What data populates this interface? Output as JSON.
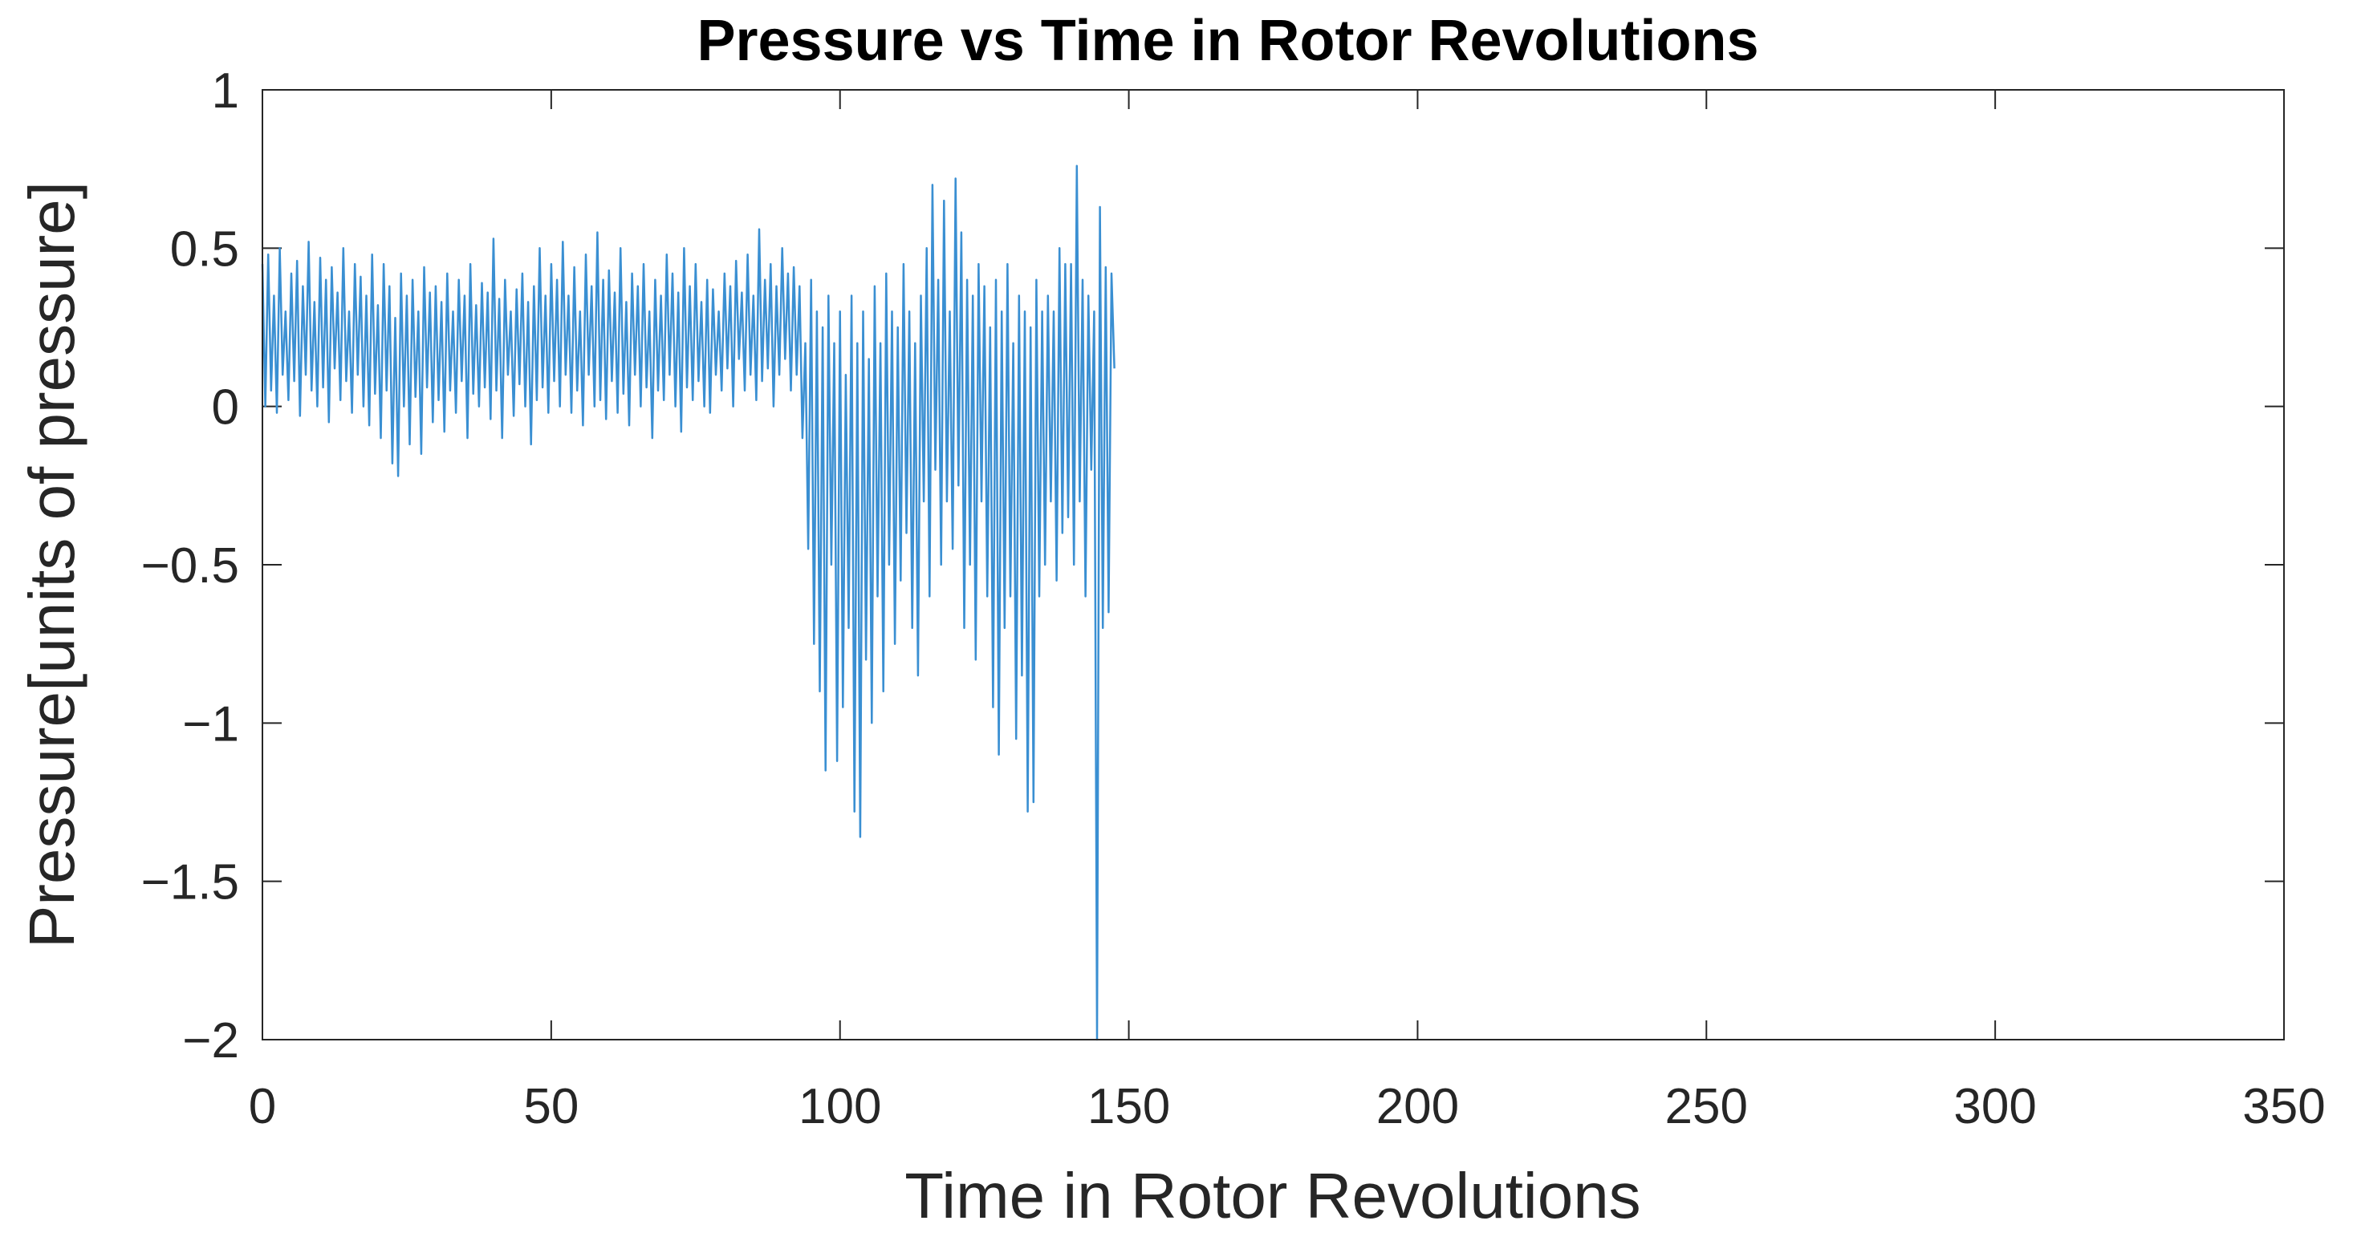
{
  "chart_data": {
    "type": "line",
    "title": "Pressure vs Time in Rotor Revolutions",
    "xlabel": "Time in Rotor Revolutions",
    "ylabel": "Pressure[units of pressure]",
    "xlim": [
      0,
      350
    ],
    "ylim": [
      -2,
      1
    ],
    "xticks": [
      0,
      50,
      100,
      150,
      200,
      250,
      300,
      350
    ],
    "xtick_labels": [
      "0",
      "50",
      "100",
      "150",
      "200",
      "250",
      "300",
      "350"
    ],
    "yticks": [
      1,
      0.5,
      0,
      -0.5,
      -1,
      -1.5,
      -2
    ],
    "ytick_labels": [
      "1",
      "0.5",
      "0",
      "−0.5",
      "−1",
      "−1.5",
      "−2"
    ],
    "grid": false,
    "line_color": "#3a8fd2",
    "series": [
      {
        "name": "Pressure",
        "x_start": 0,
        "x_step": 0.5,
        "values": [
          0.45,
          0.0,
          0.48,
          0.05,
          0.35,
          -0.02,
          0.5,
          0.1,
          0.3,
          0.02,
          0.42,
          0.08,
          0.46,
          -0.03,
          0.38,
          0.1,
          0.52,
          0.05,
          0.33,
          0.0,
          0.47,
          0.06,
          0.4,
          -0.05,
          0.44,
          0.12,
          0.36,
          0.02,
          0.5,
          0.08,
          0.3,
          -0.02,
          0.45,
          0.1,
          0.41,
          0.0,
          0.35,
          -0.06,
          0.48,
          0.04,
          0.32,
          -0.1,
          0.45,
          0.05,
          0.38,
          -0.18,
          0.28,
          -0.22,
          0.42,
          0.0,
          0.35,
          -0.12,
          0.4,
          0.03,
          0.3,
          -0.15,
          0.44,
          0.06,
          0.36,
          -0.05,
          0.38,
          0.02,
          0.33,
          -0.08,
          0.42,
          0.05,
          0.3,
          -0.02,
          0.4,
          0.08,
          0.35,
          -0.1,
          0.45,
          0.04,
          0.32,
          0.0,
          0.39,
          0.06,
          0.36,
          -0.04,
          0.53,
          0.05,
          0.34,
          -0.1,
          0.4,
          0.1,
          0.3,
          -0.03,
          0.37,
          0.07,
          0.42,
          0.0,
          0.33,
          -0.12,
          0.38,
          0.02,
          0.5,
          0.06,
          0.35,
          -0.02,
          0.45,
          0.08,
          0.4,
          0.0,
          0.52,
          0.1,
          0.35,
          -0.02,
          0.44,
          0.05,
          0.3,
          -0.06,
          0.48,
          0.1,
          0.38,
          0.0,
          0.55,
          0.02,
          0.4,
          -0.04,
          0.43,
          0.08,
          0.36,
          -0.02,
          0.5,
          0.04,
          0.33,
          -0.06,
          0.42,
          0.1,
          0.38,
          0.0,
          0.45,
          0.06,
          0.3,
          -0.1,
          0.4,
          0.05,
          0.35,
          0.02,
          0.48,
          0.1,
          0.42,
          0.0,
          0.36,
          -0.08,
          0.5,
          0.06,
          0.38,
          0.02,
          0.45,
          0.08,
          0.33,
          0.0,
          0.4,
          -0.02,
          0.37,
          0.1,
          0.3,
          0.05,
          0.42,
          0.12,
          0.38,
          0.0,
          0.46,
          0.15,
          0.36,
          0.05,
          0.48,
          0.1,
          0.35,
          0.02,
          0.56,
          0.08,
          0.4,
          0.12,
          0.45,
          0.0,
          0.38,
          0.1,
          0.5,
          0.15,
          0.42,
          0.05,
          0.44,
          0.1,
          0.38,
          -0.1,
          0.2,
          -0.45,
          0.4,
          -0.75,
          0.3,
          -0.9,
          0.25,
          -1.15,
          0.35,
          -0.5,
          0.2,
          -1.12,
          0.3,
          -0.95,
          0.1,
          -0.7,
          0.35,
          -1.28,
          0.2,
          -1.36,
          0.3,
          -0.8,
          0.15,
          -1.0,
          0.38,
          -0.6,
          0.2,
          -0.9,
          0.42,
          -0.5,
          0.3,
          -0.75,
          0.25,
          -0.55,
          0.45,
          -0.4,
          0.3,
          -0.7,
          0.2,
          -0.85,
          0.35,
          -0.3,
          0.5,
          -0.6,
          0.7,
          -0.2,
          0.4,
          -0.5,
          0.65,
          -0.3,
          0.3,
          -0.45,
          0.72,
          -0.25,
          0.55,
          -0.7,
          0.4,
          -0.5,
          0.35,
          -0.8,
          0.45,
          -0.3,
          0.38,
          -0.6,
          0.25,
          -0.95,
          0.4,
          -1.1,
          0.3,
          -0.7,
          0.45,
          -0.6,
          0.2,
          -1.05,
          0.35,
          -0.85,
          0.3,
          -1.28,
          0.25,
          -1.25,
          0.4,
          -0.6,
          0.3,
          -0.5,
          0.35,
          -0.3,
          0.3,
          -0.55,
          0.5,
          -0.4,
          0.45,
          -0.35,
          0.45,
          -0.5,
          0.76,
          -0.3,
          0.4,
          -0.6,
          0.35,
          -0.2,
          0.3,
          -2.0,
          0.63,
          -0.7,
          0.44,
          -0.65,
          0.42,
          0.12
        ]
      }
    ]
  }
}
